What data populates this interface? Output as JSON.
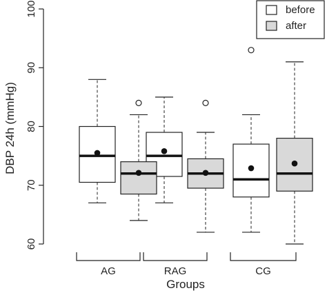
{
  "chart_data": {
    "type": "boxplot",
    "ylabel": "DBP 24h (mmHg)",
    "xlabel": "Groups",
    "ylim": [
      60,
      100
    ],
    "yticks": [
      60,
      70,
      80,
      90,
      100
    ],
    "grid": false,
    "legend_position": "top-right",
    "groups": [
      "AG",
      "RAG",
      "CG"
    ],
    "series": [
      {
        "name": "before",
        "color": "#ffffff",
        "boxes": [
          {
            "group": "AG",
            "whisker_low": 67,
            "q1": 70.5,
            "median": 75,
            "q3": 80,
            "whisker_high": 88,
            "mean": 75.5,
            "outliers": []
          },
          {
            "group": "RAG",
            "whisker_low": 67,
            "q1": 71.5,
            "median": 75,
            "q3": 79,
            "whisker_high": 85,
            "mean": 75.8,
            "outliers": []
          },
          {
            "group": "CG",
            "whisker_low": 62,
            "q1": 68,
            "median": 71,
            "q3": 77,
            "whisker_high": 82,
            "mean": 72.9,
            "outliers": [
              93
            ]
          }
        ]
      },
      {
        "name": "after",
        "color": "#d9d9d9",
        "boxes": [
          {
            "group": "AG",
            "whisker_low": 64,
            "q1": 68.5,
            "median": 72,
            "q3": 74,
            "whisker_high": 82,
            "mean": 72.1,
            "outliers": [
              84
            ]
          },
          {
            "group": "RAG",
            "whisker_low": 62,
            "q1": 69.5,
            "median": 72,
            "q3": 74.5,
            "whisker_high": 79,
            "mean": 72.1,
            "outliers": [
              84
            ]
          },
          {
            "group": "CG",
            "whisker_low": 60,
            "q1": 69,
            "median": 72,
            "q3": 78,
            "whisker_high": 91,
            "mean": 73.7,
            "outliers": []
          }
        ]
      }
    ]
  }
}
